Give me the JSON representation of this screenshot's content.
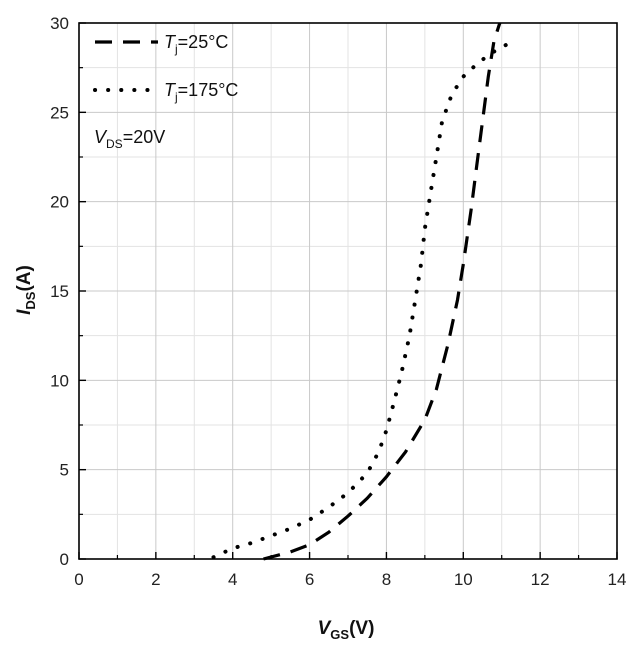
{
  "chart_data": {
    "type": "line",
    "xlabel": {
      "main": "V",
      "sub": "GS",
      "unit": "(V)"
    },
    "ylabel": {
      "main": "I",
      "sub": "DS",
      "unit": "(A)"
    },
    "xlim": [
      0,
      14
    ],
    "ylim": [
      0,
      30
    ],
    "x_major_ticks": [
      0,
      2,
      4,
      6,
      8,
      10,
      12,
      14
    ],
    "y_major_ticks": [
      0,
      5,
      10,
      15,
      20,
      25,
      30
    ],
    "x_minor_ticks": [
      1,
      3,
      5,
      7,
      9,
      11,
      13
    ],
    "y_minor_ticks": [
      2.5,
      7.5,
      12.5,
      17.5,
      22.5,
      27.5
    ],
    "grid": true,
    "legend_position": "top-left",
    "series": [
      {
        "name": {
          "main": "T",
          "sub": "j",
          "suffix": "=25°C"
        },
        "style": "dashed",
        "color": "#000000",
        "points": [
          [
            4.8,
            0.0
          ],
          [
            5.5,
            0.4
          ],
          [
            6.0,
            0.8
          ],
          [
            6.5,
            1.5
          ],
          [
            7.0,
            2.4
          ],
          [
            7.5,
            3.4
          ],
          [
            8.0,
            4.6
          ],
          [
            8.5,
            6.0
          ],
          [
            9.0,
            7.8
          ],
          [
            9.3,
            9.5
          ],
          [
            9.6,
            12.0
          ],
          [
            9.85,
            14.5
          ],
          [
            10.0,
            16.5
          ],
          [
            10.2,
            19.5
          ],
          [
            10.35,
            22.0
          ],
          [
            10.5,
            24.5
          ],
          [
            10.65,
            27.0
          ],
          [
            10.8,
            29.0
          ],
          [
            10.95,
            30.0
          ]
        ]
      },
      {
        "name": {
          "main": "T",
          "sub": "j",
          "suffix": "=175°C"
        },
        "style": "dotted",
        "color": "#000000",
        "points": [
          [
            3.5,
            0.1
          ],
          [
            4.0,
            0.6
          ],
          [
            4.5,
            0.9
          ],
          [
            5.0,
            1.3
          ],
          [
            5.5,
            1.7
          ],
          [
            6.0,
            2.2
          ],
          [
            6.5,
            2.9
          ],
          [
            7.0,
            3.7
          ],
          [
            7.5,
            4.8
          ],
          [
            7.8,
            6.0
          ],
          [
            8.0,
            7.2
          ],
          [
            8.2,
            8.8
          ],
          [
            8.4,
            10.5
          ],
          [
            8.6,
            12.5
          ],
          [
            8.75,
            14.5
          ],
          [
            8.9,
            16.5
          ],
          [
            9.0,
            18.5
          ],
          [
            9.15,
            20.5
          ],
          [
            9.3,
            22.5
          ],
          [
            9.45,
            24.5
          ],
          [
            9.7,
            26.0
          ],
          [
            10.0,
            27.0
          ],
          [
            10.4,
            27.8
          ],
          [
            10.8,
            28.4
          ],
          [
            11.3,
            29.0
          ]
        ]
      }
    ],
    "annotation": {
      "main": "V",
      "sub": "DS",
      "suffix": "=20V"
    }
  }
}
